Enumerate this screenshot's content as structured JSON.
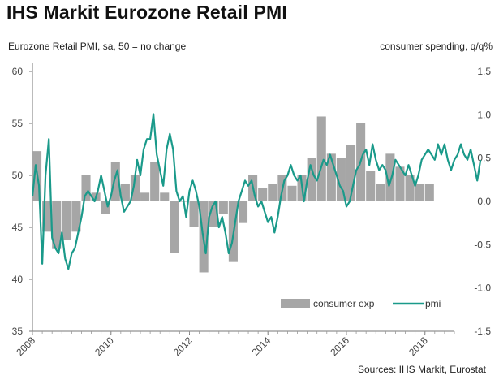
{
  "header": {
    "title": "IHS Markit Eurozone Retail PMI",
    "left_axis_caption": "Eurozone Retail PMI, sa, 50 = no change",
    "right_axis_caption": "consumer spending, q/q%",
    "source": "Sources: IHS Markit, Eurostat"
  },
  "chart_data": {
    "type": "bar+line",
    "title": "IHS Markit Eurozone Retail PMI",
    "left_axis": {
      "label": "Eurozone Retail PMI, sa, 50 = no change",
      "ylim": [
        35,
        60
      ],
      "ticks": [
        35,
        40,
        45,
        50,
        55,
        60
      ]
    },
    "right_axis": {
      "label": "consumer spending, q/q%",
      "ylim": [
        -1.5,
        1.5
      ],
      "ticks": [
        "-1.5",
        "-1.0",
        "-0.5",
        "0.0",
        "0.5",
        "1.0",
        "1.5"
      ],
      "tick_values": [
        -1.5,
        -1.0,
        -0.5,
        0.0,
        0.5,
        1.0,
        1.5
      ]
    },
    "x_ticks": [
      "2008",
      "2010",
      "2012",
      "2014",
      "2016",
      "2018"
    ],
    "x_tick_values": [
      2008,
      2010,
      2012,
      2014,
      2016,
      2018
    ],
    "x_range": [
      2008,
      2018.75
    ],
    "legend": [
      {
        "name": "consumer exp",
        "color": "#a6a6a6",
        "kind": "bar"
      },
      {
        "name": "pmi",
        "color": "#1a9a8a",
        "kind": "line"
      }
    ],
    "series": [
      {
        "name": "consumer exp",
        "axis": "right",
        "x": [
          2008.0,
          2008.25,
          2008.5,
          2008.75,
          2009.0,
          2009.25,
          2009.5,
          2009.75,
          2010.0,
          2010.25,
          2010.5,
          2010.75,
          2011.0,
          2011.25,
          2011.5,
          2011.75,
          2012.0,
          2012.25,
          2012.5,
          2012.75,
          2013.0,
          2013.25,
          2013.5,
          2013.75,
          2014.0,
          2014.25,
          2014.5,
          2014.75,
          2015.0,
          2015.25,
          2015.5,
          2015.75,
          2016.0,
          2016.25,
          2016.5,
          2016.75,
          2017.0,
          2017.25,
          2017.5,
          2017.75,
          2018.0
        ],
        "values": [
          0.58,
          -0.35,
          -0.55,
          -0.45,
          -0.35,
          0.3,
          0.1,
          -0.15,
          0.45,
          0.2,
          0.3,
          0.1,
          0.45,
          0.1,
          -0.6,
          0.0,
          -0.3,
          -0.82,
          -0.3,
          -0.15,
          -0.7,
          -0.25,
          0.3,
          0.15,
          0.2,
          0.3,
          0.18,
          0.3,
          0.5,
          0.98,
          0.55,
          0.5,
          0.65,
          0.9,
          0.35,
          0.2,
          0.55,
          0.4,
          0.3,
          0.2,
          0.2
        ]
      },
      {
        "name": "pmi",
        "axis": "left",
        "x_start": 2008.0,
        "x_step": 0.08333,
        "values": [
          48.0,
          51.0,
          49.0,
          41.5,
          50.0,
          53.5,
          44.0,
          43.0,
          42.5,
          44.5,
          42.0,
          41.0,
          42.5,
          43.0,
          44.5,
          46.0,
          48.0,
          48.5,
          48.0,
          47.5,
          48.5,
          50.0,
          48.5,
          47.0,
          48.0,
          49.5,
          50.5,
          48.0,
          46.5,
          47.0,
          47.5,
          49.0,
          51.5,
          50.0,
          52.5,
          53.5,
          53.5,
          55.9,
          52.0,
          50.5,
          49.0,
          52.5,
          54.0,
          52.5,
          48.5,
          47.5,
          48.0,
          46.0,
          48.5,
          49.5,
          48.5,
          47.0,
          44.5,
          42.5,
          46.0,
          47.0,
          47.5,
          45.0,
          46.0,
          44.5,
          42.5,
          43.5,
          45.5,
          47.5,
          48.5,
          49.5,
          49.0,
          49.5,
          48.0,
          47.0,
          47.5,
          46.5,
          45.5,
          46.0,
          44.5,
          46.0,
          48.0,
          49.5,
          50.0,
          51.0,
          50.0,
          49.5,
          50.0,
          47.5,
          49.5,
          51.0,
          50.0,
          49.5,
          50.5,
          51.5,
          51.0,
          52.0,
          51.0,
          50.0,
          49.0,
          48.5,
          47.0,
          47.5,
          49.0,
          50.5,
          51.0,
          52.0,
          52.5,
          51.0,
          53.0,
          51.5,
          50.5,
          51.0,
          50.5,
          49.0,
          50.0,
          51.5,
          51.0,
          50.5,
          50.0,
          51.0,
          50.0,
          49.0,
          50.0,
          51.5,
          52.0,
          52.5,
          52.0,
          51.5,
          53.0,
          52.0,
          53.0,
          51.5,
          50.5,
          51.5,
          52.0,
          53.0,
          52.0,
          51.5,
          52.5,
          51.0,
          49.5,
          51.5
        ]
      }
    ]
  }
}
